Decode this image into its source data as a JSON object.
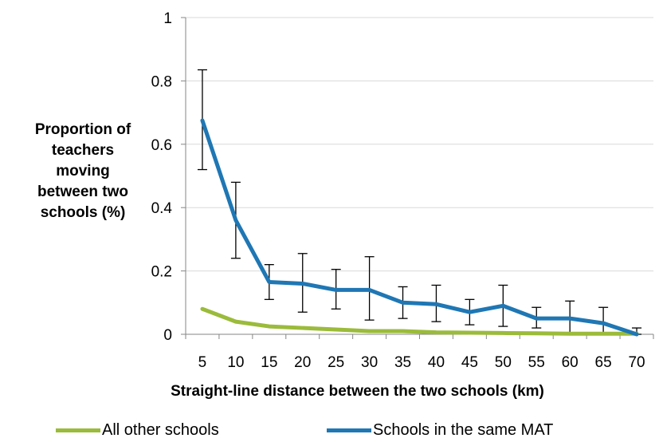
{
  "chart_data": {
    "type": "line",
    "ylabel_lines": [
      "Proportion of",
      "teachers",
      "moving",
      "between two",
      "schools (%)"
    ],
    "xlabel": "Straight-line distance between the two schools (km)",
    "ylim": [
      0,
      1
    ],
    "y_ticks": [
      "0",
      "0.2",
      "0.4",
      "0.6",
      "0.8",
      "1"
    ],
    "y_tick_values": [
      0,
      0.2,
      0.4,
      0.6,
      0.8,
      1
    ],
    "categories": [
      "5",
      "10",
      "15",
      "20",
      "25",
      "30",
      "35",
      "40",
      "45",
      "50",
      "55",
      "60",
      "65",
      "70"
    ],
    "grid": true,
    "legend_position": "bottom",
    "series": [
      {
        "name": "All other schools",
        "color": "#9BBB3B",
        "values": [
          0.08,
          0.04,
          0.025,
          0.02,
          0.015,
          0.01,
          0.01,
          0.006,
          0.005,
          0.004,
          0.003,
          0.002,
          0.002,
          0.002
        ]
      },
      {
        "name": "Schools in the same MAT",
        "color": "#1F77B4",
        "values": [
          0.675,
          0.36,
          0.165,
          0.16,
          0.14,
          0.14,
          0.1,
          0.095,
          0.07,
          0.09,
          0.05,
          0.05,
          0.035,
          0.0
        ],
        "error_low": [
          0.52,
          0.24,
          0.11,
          0.07,
          0.08,
          0.045,
          0.05,
          0.04,
          0.03,
          0.025,
          0.02,
          0.0,
          0.0,
          0.0
        ],
        "error_high": [
          0.835,
          0.48,
          0.22,
          0.255,
          0.205,
          0.245,
          0.15,
          0.155,
          0.11,
          0.155,
          0.085,
          0.105,
          0.085,
          0.02
        ]
      }
    ]
  }
}
